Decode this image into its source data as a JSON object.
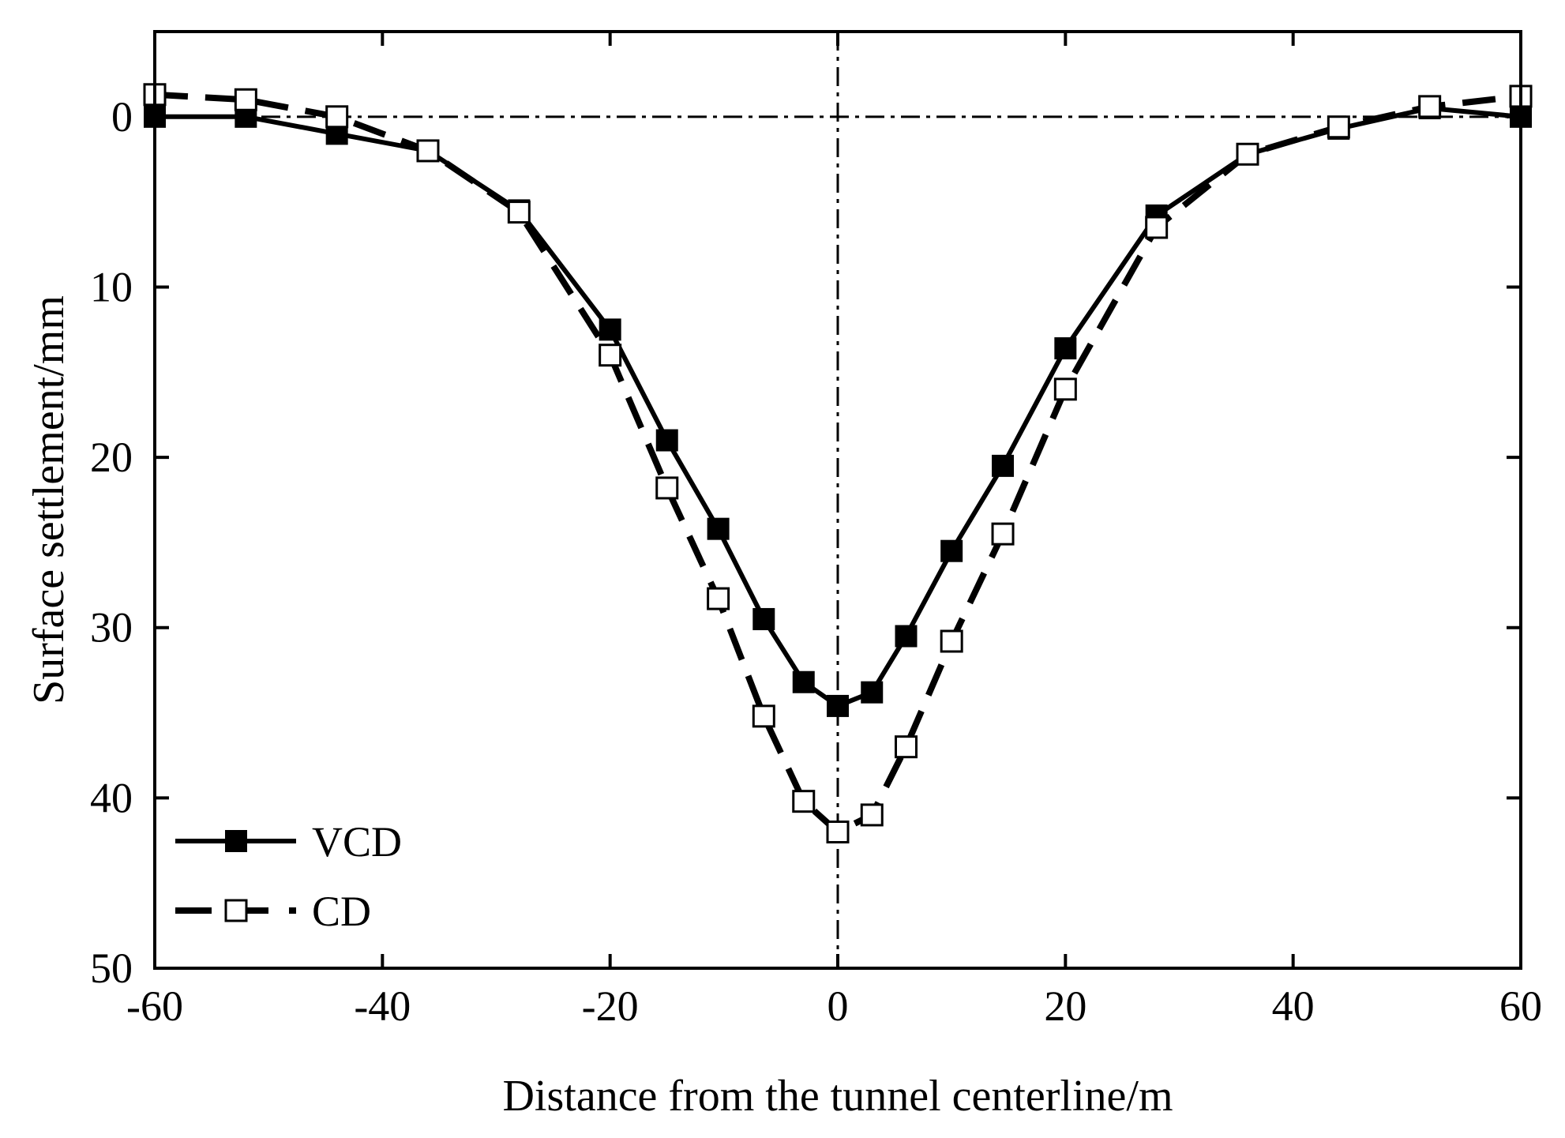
{
  "chart_data": {
    "type": "line",
    "title": "",
    "xlabel": "Distance from the tunnel centerline/m",
    "ylabel": "Surface settlement/mm",
    "xlim": [
      -60,
      60
    ],
    "ylim": [
      -5,
      50
    ],
    "y_inverted": true,
    "xticks": [
      -60,
      -40,
      -20,
      0,
      20,
      40,
      60
    ],
    "yticks": [
      0,
      10,
      20,
      30,
      40,
      50
    ],
    "xtick_labels": [
      "-60",
      "-40",
      "-20",
      "0",
      "20",
      "40",
      "60"
    ],
    "ytick_labels": [
      "0",
      "10",
      "20",
      "30",
      "40",
      "50"
    ],
    "grid": false,
    "legend_position": "bottom-left",
    "reference_lines": [
      {
        "orientation": "horizontal",
        "value": 0,
        "style": "dash-dot"
      },
      {
        "orientation": "vertical",
        "value": 0,
        "style": "dash-dot"
      }
    ],
    "series": [
      {
        "name": "VCD",
        "line_style": "solid",
        "marker": "filled-square",
        "color": "#000000",
        "x": [
          -60,
          -52,
          -44,
          -36,
          -28,
          -20,
          -15,
          -10.5,
          -6.5,
          -3,
          0,
          3,
          6,
          10,
          14.5,
          20,
          28,
          36,
          44,
          52,
          60
        ],
        "y": [
          0,
          0,
          1,
          2,
          5.5,
          12.5,
          19,
          24.2,
          29.5,
          33.2,
          34.6,
          33.8,
          30.5,
          25.5,
          20.5,
          13.6,
          5.8,
          2.2,
          0.7,
          -0.5,
          0
        ]
      },
      {
        "name": "CD",
        "line_style": "dashed",
        "marker": "open-square",
        "color": "#000000",
        "x": [
          -60,
          -52,
          -44,
          -36,
          -28,
          -20,
          -15,
          -10.5,
          -6.5,
          -3,
          0,
          3,
          6,
          10,
          14.5,
          20,
          28,
          36,
          44,
          52,
          60
        ],
        "y": [
          -1.3,
          -1,
          0,
          2,
          5.6,
          14,
          21.8,
          28.3,
          35.2,
          40.2,
          42,
          41,
          37,
          30.8,
          24.5,
          16,
          6.5,
          2.2,
          0.6,
          -0.6,
          -1.2
        ]
      }
    ]
  }
}
